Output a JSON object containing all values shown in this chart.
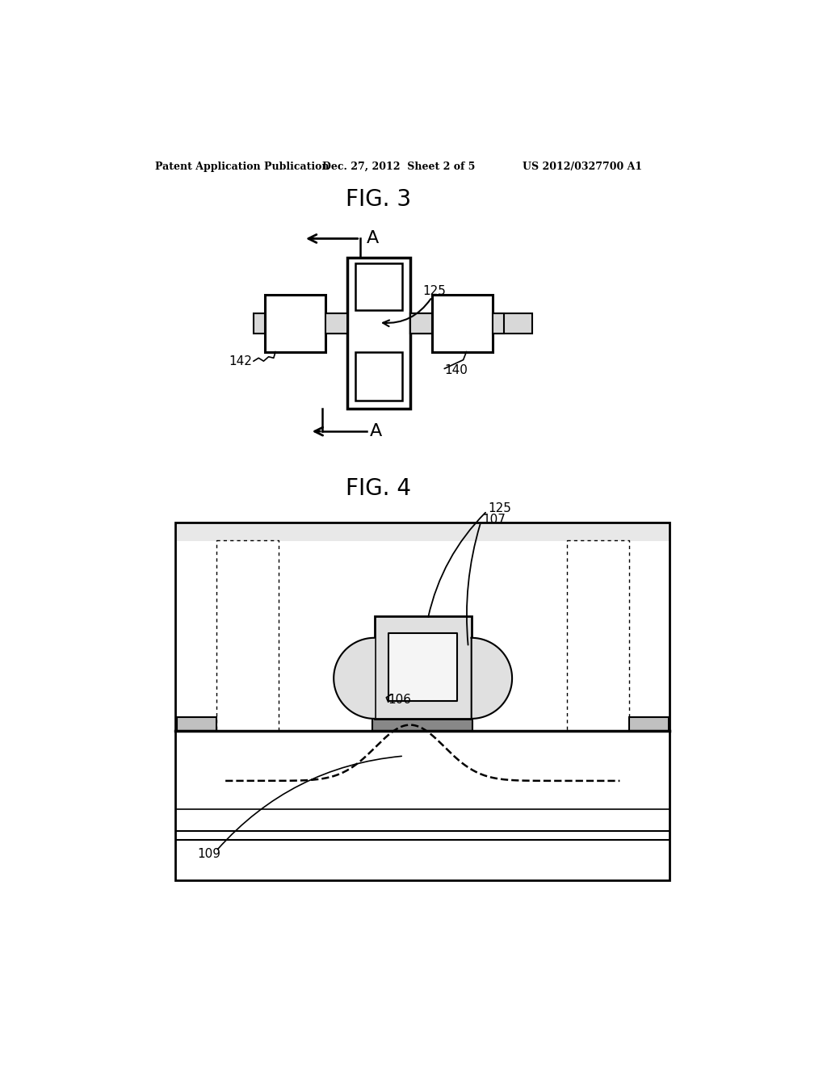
{
  "bg_color": "#ffffff",
  "header_text1": "Patent Application Publication",
  "header_text2": "Dec. 27, 2012  Sheet 2 of 5",
  "header_text3": "US 2012/0327700 A1",
  "fig3_title": "FIG. 3",
  "fig4_title": "FIG. 4",
  "label_125": "125",
  "label_140": "140",
  "label_142": "142",
  "label_107": "107",
  "label_106": "106",
  "label_109": "109",
  "label_A": "A"
}
